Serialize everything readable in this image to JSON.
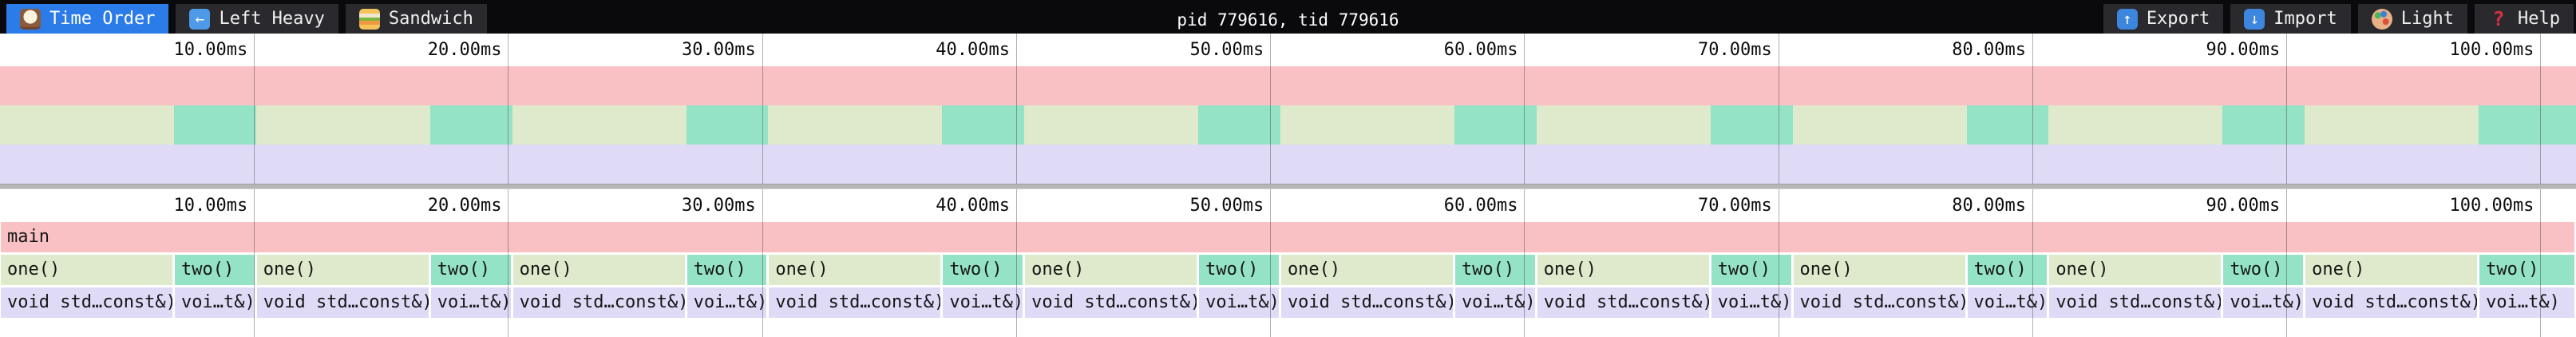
{
  "toolbar": {
    "title": "pid 779616, tid 779616",
    "tabs": [
      {
        "label": "Time Order",
        "icon": "clock",
        "active": true
      },
      {
        "label": "Left Heavy",
        "icon": "left-arrow",
        "active": false
      },
      {
        "label": "Sandwich",
        "icon": "sandwich",
        "active": false
      }
    ],
    "actions": [
      {
        "label": "Export",
        "icon": "export-arrow"
      },
      {
        "label": "Import",
        "icon": "import-arrow"
      },
      {
        "label": "Light",
        "icon": "palette"
      },
      {
        "label": "Help",
        "icon": "question-mark"
      }
    ]
  },
  "colors": {
    "pink": "#f9c1c3",
    "green": "#dfe9cb",
    "teal": "#95e3c6",
    "lavender": "#dfdbf7",
    "active_tab": "#2b7ce9",
    "toolbar_bg": "#0a0a0d",
    "chip_bg": "#2a2a2e",
    "divider": "#b6b6b6",
    "gridline": "rgba(30,30,30,0.35)"
  },
  "chart_data": {
    "type": "flamegraph",
    "unit": "ms",
    "total_ms": 101.4,
    "ticks": [
      {
        "ms": 10,
        "label": "10.00ms"
      },
      {
        "ms": 20,
        "label": "20.00ms"
      },
      {
        "ms": 30,
        "label": "30.00ms"
      },
      {
        "ms": 40,
        "label": "40.00ms"
      },
      {
        "ms": 50,
        "label": "50.00ms"
      },
      {
        "ms": 60,
        "label": "60.00ms"
      },
      {
        "ms": 70,
        "label": "70.00ms"
      },
      {
        "ms": 80,
        "label": "80.00ms"
      },
      {
        "ms": 90,
        "label": "90.00ms"
      },
      {
        "ms": 100,
        "label": "100.00ms"
      }
    ],
    "rows": [
      {
        "depth": 0,
        "blocks": [
          {
            "label": "main",
            "color": "pink",
            "start": 0,
            "end": 101.4
          }
        ]
      },
      {
        "depth": 1,
        "blocks": [
          {
            "label": "one()",
            "color": "green",
            "start": 0,
            "end": 6.85
          },
          {
            "label": "two()",
            "color": "teal",
            "start": 6.85,
            "end": 10.08
          },
          {
            "label": "one()",
            "color": "green",
            "start": 10.08,
            "end": 16.93
          },
          {
            "label": "two()",
            "color": "teal",
            "start": 16.93,
            "end": 20.16
          },
          {
            "label": "one()",
            "color": "green",
            "start": 20.16,
            "end": 27.01
          },
          {
            "label": "two()",
            "color": "teal",
            "start": 27.01,
            "end": 30.24
          },
          {
            "label": "one()",
            "color": "green",
            "start": 30.24,
            "end": 37.09
          },
          {
            "label": "two()",
            "color": "teal",
            "start": 37.09,
            "end": 40.32
          },
          {
            "label": "one()",
            "color": "green",
            "start": 40.32,
            "end": 47.17
          },
          {
            "label": "two()",
            "color": "teal",
            "start": 47.17,
            "end": 50.4
          },
          {
            "label": "one()",
            "color": "green",
            "start": 50.4,
            "end": 57.25
          },
          {
            "label": "two()",
            "color": "teal",
            "start": 57.25,
            "end": 60.48
          },
          {
            "label": "one()",
            "color": "green",
            "start": 60.48,
            "end": 67.33
          },
          {
            "label": "two()",
            "color": "teal",
            "start": 67.33,
            "end": 70.56
          },
          {
            "label": "one()",
            "color": "green",
            "start": 70.56,
            "end": 77.41
          },
          {
            "label": "two()",
            "color": "teal",
            "start": 77.41,
            "end": 80.64
          },
          {
            "label": "one()",
            "color": "green",
            "start": 80.64,
            "end": 87.49
          },
          {
            "label": "two()",
            "color": "teal",
            "start": 87.49,
            "end": 90.72
          },
          {
            "label": "one()",
            "color": "green",
            "start": 90.72,
            "end": 97.57
          },
          {
            "label": "two()",
            "color": "teal",
            "start": 97.57,
            "end": 101.4
          }
        ]
      },
      {
        "depth": 2,
        "blocks": [
          {
            "label": "void std…const&)",
            "color": "lavender",
            "start": 0,
            "end": 6.85
          },
          {
            "label": "voi…t&)",
            "color": "lavender",
            "start": 6.85,
            "end": 10.08
          },
          {
            "label": "void std…const&)",
            "color": "lavender",
            "start": 10.08,
            "end": 16.93
          },
          {
            "label": "voi…t&)",
            "color": "lavender",
            "start": 16.93,
            "end": 20.16
          },
          {
            "label": "void std…const&)",
            "color": "lavender",
            "start": 20.16,
            "end": 27.01
          },
          {
            "label": "voi…t&)",
            "color": "lavender",
            "start": 27.01,
            "end": 30.24
          },
          {
            "label": "void std…const&)",
            "color": "lavender",
            "start": 30.24,
            "end": 37.09
          },
          {
            "label": "voi…t&)",
            "color": "lavender",
            "start": 37.09,
            "end": 40.32
          },
          {
            "label": "void std…const&)",
            "color": "lavender",
            "start": 40.32,
            "end": 47.17
          },
          {
            "label": "voi…t&)",
            "color": "lavender",
            "start": 47.17,
            "end": 50.4
          },
          {
            "label": "void std…const&)",
            "color": "lavender",
            "start": 50.4,
            "end": 57.25
          },
          {
            "label": "voi…t&)",
            "color": "lavender",
            "start": 57.25,
            "end": 60.48
          },
          {
            "label": "void std…const&)",
            "color": "lavender",
            "start": 60.48,
            "end": 67.33
          },
          {
            "label": "voi…t&)",
            "color": "lavender",
            "start": 67.33,
            "end": 70.56
          },
          {
            "label": "void std…const&)",
            "color": "lavender",
            "start": 70.56,
            "end": 77.41
          },
          {
            "label": "voi…t&)",
            "color": "lavender",
            "start": 77.41,
            "end": 80.64
          },
          {
            "label": "void std…const&)",
            "color": "lavender",
            "start": 80.64,
            "end": 87.49
          },
          {
            "label": "voi…t&)",
            "color": "lavender",
            "start": 87.49,
            "end": 90.72
          },
          {
            "label": "void std…const&)",
            "color": "lavender",
            "start": 90.72,
            "end": 97.57
          },
          {
            "label": "voi…t&)",
            "color": "lavender",
            "start": 97.57,
            "end": 101.4
          }
        ]
      }
    ]
  }
}
